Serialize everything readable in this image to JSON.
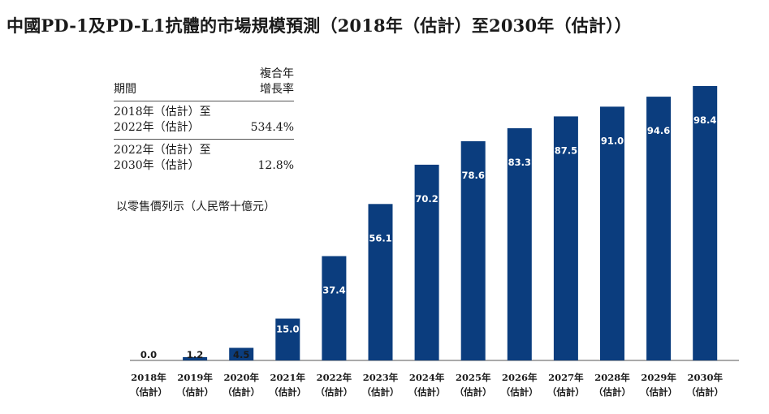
{
  "title": "中國PD-1及PD-L1抗體的市場規模預測（2018年（估計）至2030年（估計））",
  "cagr_table": {
    "header_period": "期間",
    "header_rate_line1": "複合年",
    "header_rate_line2": "增長率",
    "rows": [
      {
        "period_line1": "2018年（估計）至",
        "period_line2": "2022年（估計）",
        "rate": "534.4%"
      },
      {
        "period_line1": "2022年（估計）至",
        "period_line2": "2030年（估計）",
        "rate": "12.8%"
      }
    ]
  },
  "unit_note": "以零售價列示（人民幣十億元）",
  "chart_data": {
    "type": "bar",
    "categories": [
      [
        "2018年",
        "（估計）"
      ],
      [
        "2019年",
        "（估計）"
      ],
      [
        "2020年",
        "（估計）"
      ],
      [
        "2021年",
        "（估計）"
      ],
      [
        "2022年",
        "（估計）"
      ],
      [
        "2023年",
        "（估計）"
      ],
      [
        "2024年",
        "（估計）"
      ],
      [
        "2025年",
        "（估計）"
      ],
      [
        "2026年",
        "（估計）"
      ],
      [
        "2027年",
        "（估計）"
      ],
      [
        "2028年",
        "（估計）"
      ],
      [
        "2029年",
        "（估計）"
      ],
      [
        "2030年",
        "（估計）"
      ]
    ],
    "values": [
      0.0,
      1.2,
      4.5,
      15.0,
      37.4,
      56.1,
      70.2,
      78.6,
      83.3,
      87.5,
      91.0,
      94.6,
      98.4
    ],
    "data_labels": [
      "0.0",
      "1.2",
      "4.5",
      "15.0",
      "37.4",
      "56.1",
      "70.2",
      "78.6",
      "83.3",
      "87.5",
      "91.0",
      "94.6",
      "98.4"
    ],
    "ylim": [
      0,
      98.4
    ],
    "bar_color": "#0b3d7e",
    "label_inside_color": "#ffffff",
    "label_outside_color": "#1a1a1a",
    "grid": false
  }
}
